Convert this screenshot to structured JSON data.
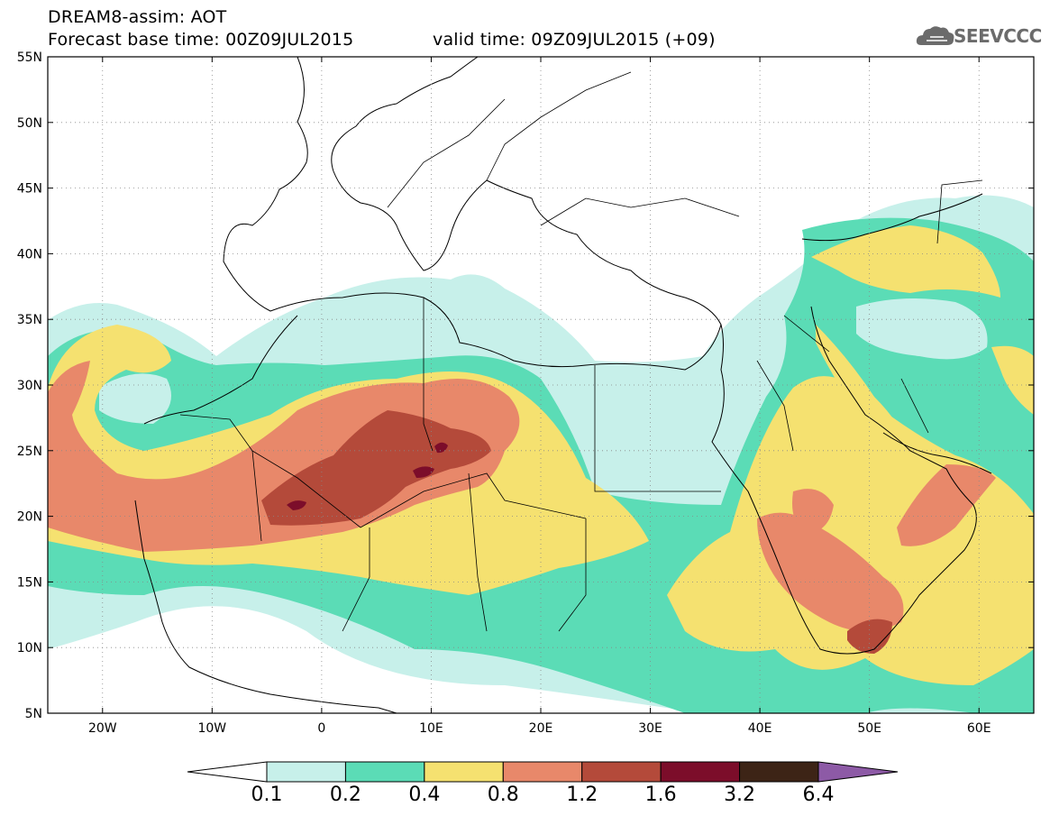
{
  "header": {
    "line1": "DREAM8-assim: AOT",
    "line2_base": "Forecast base time: 00Z09JUL2015",
    "line2_valid": "valid time: 09Z09JUL2015 (+09)"
  },
  "logo": {
    "icon": "cloud-icon",
    "text": "SEEVCCC"
  },
  "map": {
    "lat_labels": [
      "55N",
      "50N",
      "45N",
      "40N",
      "35N",
      "30N",
      "25N",
      "20N",
      "15N",
      "10N",
      "5N"
    ],
    "lon_labels": [
      "20W",
      "10W",
      "0",
      "10E",
      "20E",
      "30E",
      "40E",
      "50E",
      "60E"
    ],
    "lat_range": [
      5,
      55
    ],
    "lon_range": [
      -25,
      65
    ],
    "grid": "dotted"
  },
  "colorbar": {
    "levels": [
      "0.1",
      "0.2",
      "0.4",
      "0.8",
      "1.2",
      "1.6",
      "3.2",
      "6.4"
    ],
    "colors": [
      "#c7f0ea",
      "#5bdcb6",
      "#f5e170",
      "#e8886a",
      "#b44a3a",
      "#7c0d2a",
      "#3d2416",
      "#8d5aa6"
    ],
    "below_color": "#ffffff"
  }
}
